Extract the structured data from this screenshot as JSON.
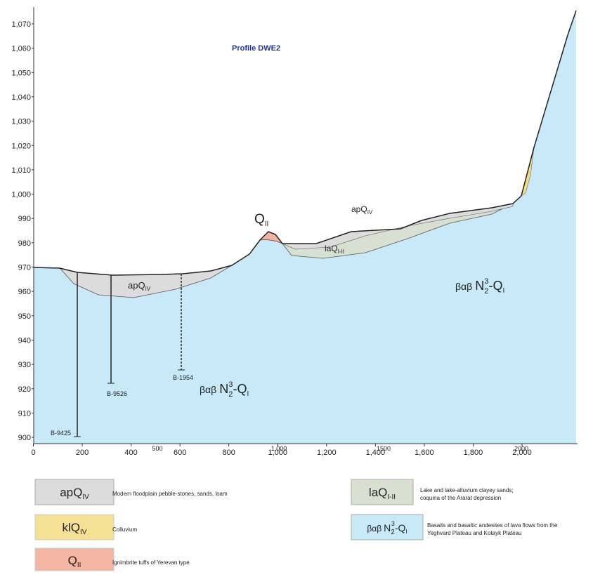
{
  "title": "Profile DWE2",
  "y_ticks": [
    "1,070",
    "1,060",
    "1,050",
    "1,040",
    "1,030",
    "1,020",
    "1,010",
    "1,000",
    "990",
    "980",
    "970",
    "960",
    "950",
    "940",
    "930",
    "920",
    "910",
    "900"
  ],
  "x_ticks": [
    "0",
    "200",
    "400",
    "600",
    "800",
    "1,000",
    "1,200",
    "1,400",
    "1,600",
    "1,800",
    "2,000"
  ],
  "x_ticks_alt": [
    "500",
    "1,000",
    "1500",
    "2000"
  ],
  "map_labels": {
    "q2": {
      "base": "Q",
      "sub": "II"
    },
    "ap_left": {
      "base": "apQ",
      "sub": "IV"
    },
    "ap_right": {
      "base": "apQ",
      "sub": "IV"
    },
    "la": {
      "base": "laQ",
      "sub": "I-II"
    },
    "basalt_right": {
      "pre": "βαβ",
      "base": "N",
      "sub": "2",
      "sup": "3",
      "tail": "-Q",
      "sub2": "I"
    },
    "basalt_center": {
      "pre": "βαβ",
      "base": "N",
      "sub": "2",
      "sup": "3",
      "tail": "-Q",
      "sub2": "I"
    }
  },
  "boreholes": [
    "B-9425",
    "B-9526",
    "B-1954"
  ],
  "legend": [
    {
      "symbol": {
        "base": "apQ",
        "sub": "IV"
      },
      "description": [
        "Modern floodplain pebble-stones, sands, loam"
      ]
    },
    {
      "symbol": {
        "base": "klQ",
        "sub": "IV"
      },
      "description": [
        "Colluvium"
      ]
    },
    {
      "symbol": {
        "base": "Q",
        "sub": "II"
      },
      "description": [
        "Ignimbrite tuffs of Yerevan type"
      ]
    },
    {
      "symbol": {
        "base": "laQ",
        "sub": "I-II"
      },
      "description": [
        "Lake and lake-alluvium clayey sands;",
        "coquina of the Ararat depression"
      ]
    },
    {
      "symbol": {
        "pre": "βαβ",
        "base": "N",
        "sub": "2",
        "sup": "3",
        "tail": "-Q",
        "sub2": "I"
      },
      "description": [
        "Basalts and basaltic andesites of lava flows from the",
        "Yeghvard Plateau and Kotayk Plateau"
      ]
    }
  ]
}
